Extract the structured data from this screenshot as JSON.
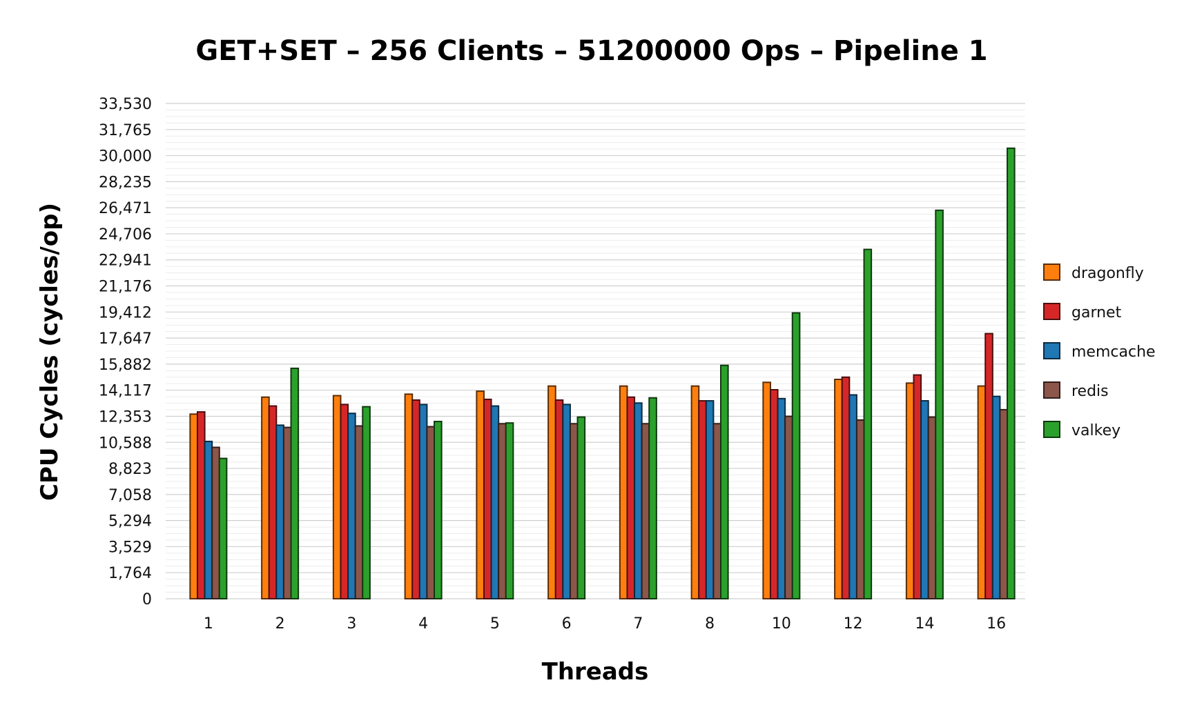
{
  "chart_data": {
    "type": "bar",
    "title": "GET+SET – 256 Clients – 51200000 Ops – Pipeline 1",
    "xlabel": "Threads",
    "ylabel": "CPU Cycles (cycles/op)",
    "ylim": [
      0,
      33530
    ],
    "yticks": [
      "0",
      "1,764",
      "3,529",
      "5,294",
      "7,058",
      "8,823",
      "10,588",
      "12,353",
      "14,117",
      "15,882",
      "17,647",
      "19,412",
      "21,176",
      "22,941",
      "24,706",
      "26,471",
      "28,235",
      "30,000",
      "31,765",
      "33,530"
    ],
    "categories": [
      "1",
      "2",
      "3",
      "4",
      "5",
      "6",
      "7",
      "8",
      "10",
      "12",
      "14",
      "16"
    ],
    "grid": true,
    "legend_position": "right",
    "series": [
      {
        "name": "dragonfly",
        "color": "#ff7f0e",
        "values": [
          12500,
          13650,
          13750,
          13850,
          14050,
          14400,
          14400,
          14400,
          14650,
          14850,
          14600,
          14400
        ]
      },
      {
        "name": "garnet",
        "color": "#d62728",
        "values": [
          12650,
          13050,
          13150,
          13450,
          13500,
          13450,
          13650,
          13400,
          14150,
          15000,
          15150,
          17950
        ]
      },
      {
        "name": "memcache",
        "color": "#1f77b4",
        "values": [
          10650,
          11750,
          12550,
          13150,
          13050,
          13150,
          13250,
          13400,
          13550,
          13800,
          13400,
          13700
        ]
      },
      {
        "name": "redis",
        "color": "#8c564b",
        "values": [
          10250,
          11600,
          11700,
          11650,
          11850,
          11850,
          11850,
          11850,
          12350,
          12100,
          12300,
          12800
        ]
      },
      {
        "name": "valkey",
        "color": "#2ca02c",
        "values": [
          9500,
          15600,
          13000,
          12000,
          11900,
          12300,
          13600,
          15800,
          19350,
          23650,
          26300,
          30500
        ]
      }
    ]
  }
}
